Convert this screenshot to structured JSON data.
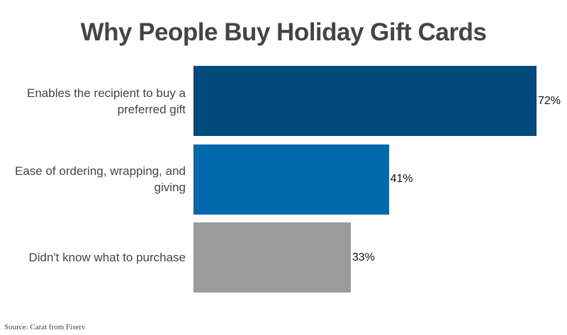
{
  "chart_data": {
    "type": "bar",
    "orientation": "horizontal",
    "title": "Why People Buy Holiday Gift Cards",
    "categories": [
      "Enables the recipient to buy a preferred gift",
      "Ease of ordering, wrapping, and giving",
      "Didn't know what to purchase"
    ],
    "values": [
      72,
      41,
      33
    ],
    "value_labels": [
      "72%",
      "41%",
      "33%"
    ],
    "colors": [
      "#004a7c",
      "#0068ab",
      "#9b9b9b"
    ],
    "source": "Source: Carat from Fiserv"
  }
}
